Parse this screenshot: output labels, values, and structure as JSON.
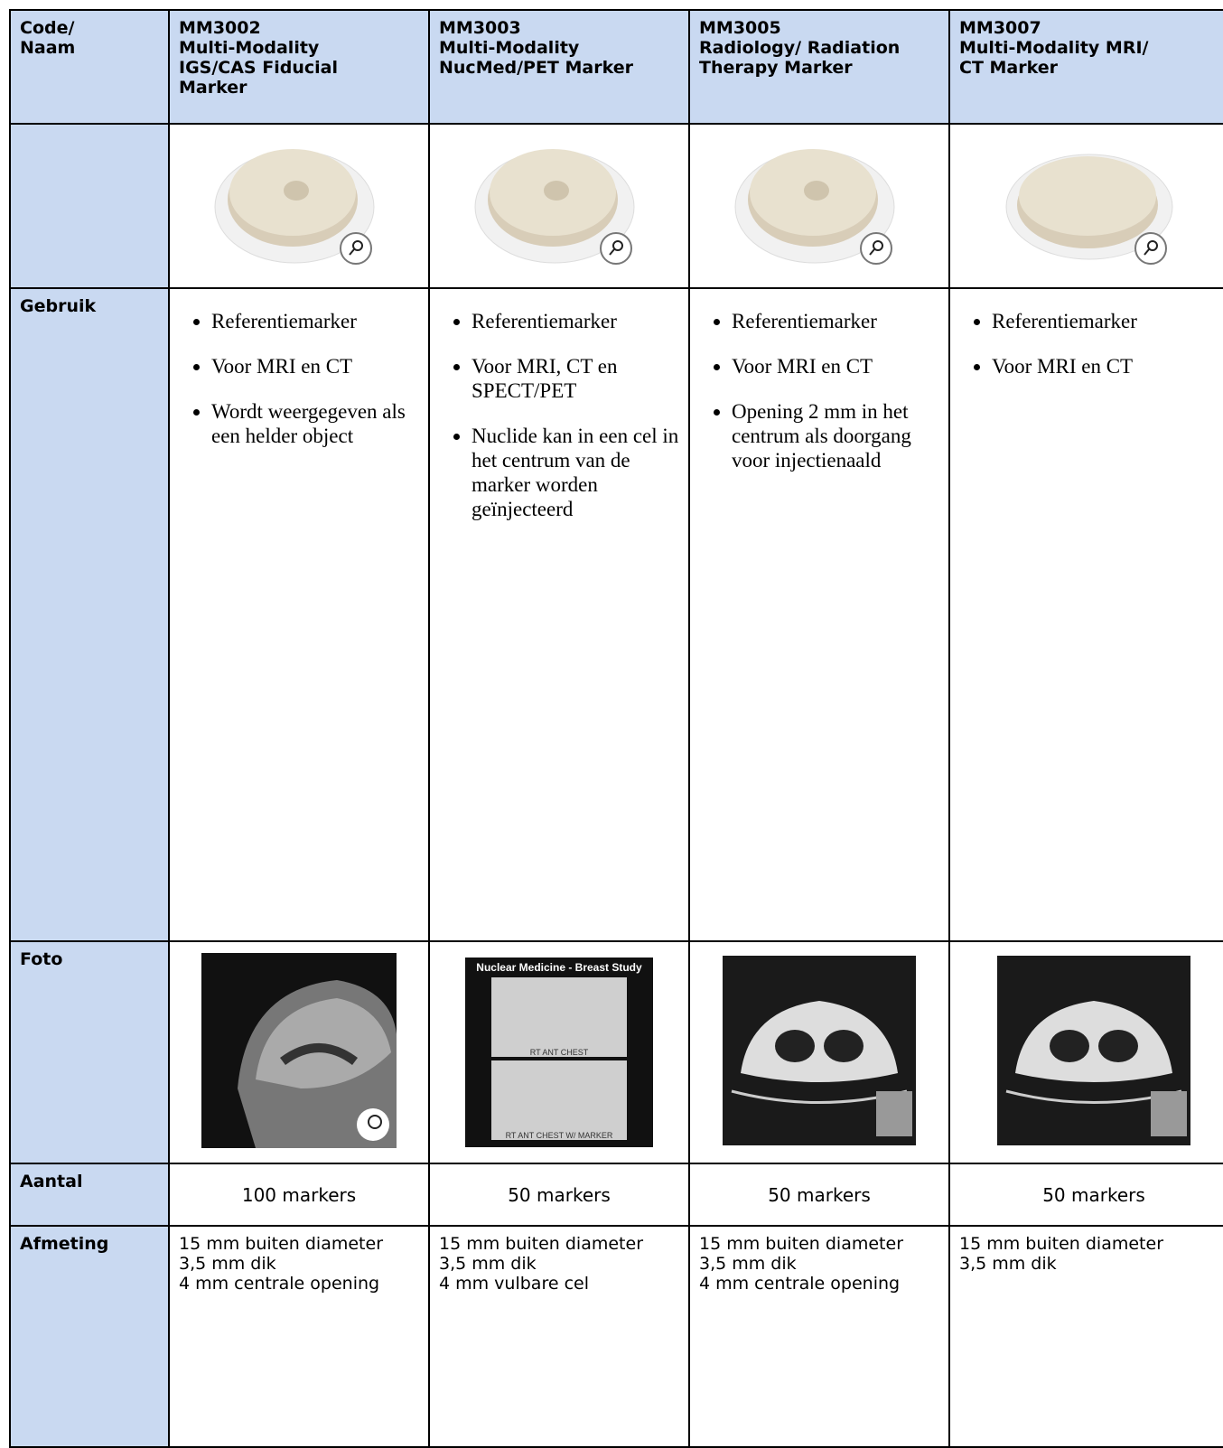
{
  "header": {
    "label_lines": [
      "Code/",
      "Naam"
    ],
    "products": [
      {
        "code": "MM3002",
        "name_lines": [
          "Multi-Modality",
          "IGS/CAS Fiducial",
          "Marker"
        ]
      },
      {
        "code": "MM3003",
        "name_lines": [
          "Multi-Modality",
          "NucMed/PET Marker"
        ]
      },
      {
        "code": "MM3005",
        "name_lines": [
          "Radiology/ Radiation",
          "Therapy Marker"
        ]
      },
      {
        "code": "MM3007",
        "name_lines": [
          "Multi-Modality MRI/",
          "CT Marker"
        ]
      }
    ]
  },
  "rows": {
    "gebruik": {
      "label": "Gebruik",
      "cells": [
        [
          "Referentiemarker",
          "Voor MRI en CT",
          "Wordt weergegeven als een helder object"
        ],
        [
          "Referentiemarker",
          "Voor MRI, CT en SPECT/PET",
          "Nuclide kan in een cel in het centrum van de  marker worden geïnjecteerd"
        ],
        [
          "Referentiemarker",
          "Voor MRI en CT",
          "Opening 2 mm in het centrum als doorgang voor injectienaald"
        ],
        [
          "Referentiemarker",
          "Voor MRI en CT"
        ]
      ]
    },
    "foto": {
      "label": "Foto",
      "nuclear_photo": {
        "title": "Nuclear Medicine - Breast Study",
        "captions": [
          "RT ANT CHEST",
          "RT ANT CHEST W/ MARKER"
        ]
      }
    },
    "aantal": {
      "label": "Aantal",
      "cells": [
        "100 markers",
        "50 markers",
        "50 markers",
        "50 markers"
      ]
    },
    "afmeting": {
      "label": "Afmeting",
      "cells": [
        [
          "15 mm buiten diameter",
          "3,5 mm dik",
          "4 mm centrale opening"
        ],
        [
          "15 mm buiten diameter",
          "3,5 mm dik",
          "4 mm vulbare cel"
        ],
        [
          "15 mm buiten diameter",
          "3,5 mm dik",
          "4 mm centrale opening"
        ],
        [
          "15 mm buiten diameter",
          "3,5 mm dik"
        ]
      ]
    }
  }
}
